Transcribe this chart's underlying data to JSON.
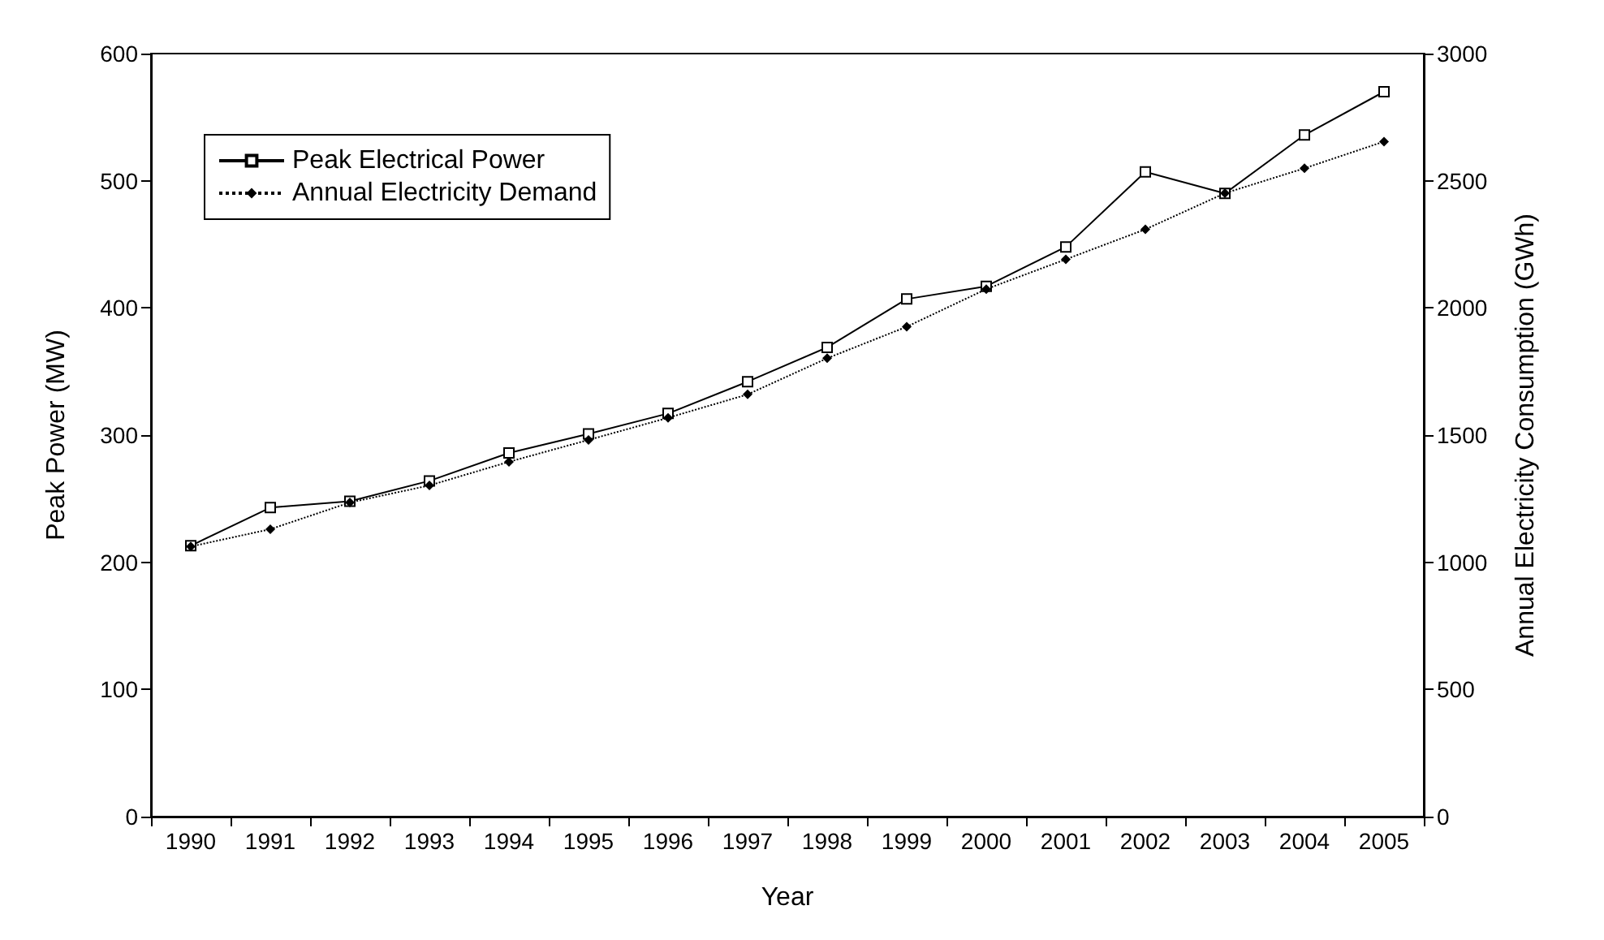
{
  "chart_data": {
    "type": "line",
    "xlabel": "Year",
    "ylabel": "Peak Power (MW)",
    "y2label": "Annual Electricity Consumption (GWh)",
    "categories": [
      "1990",
      "1991",
      "1992",
      "1993",
      "1994",
      "1995",
      "1996",
      "1997",
      "1998",
      "1999",
      "2000",
      "2001",
      "2002",
      "2003",
      "2004",
      "2005"
    ],
    "series": [
      {
        "name": "Peak Electrical Power",
        "color": "#000000",
        "marker": "square",
        "line_style": "solid",
        "values": [
          213,
          243,
          248,
          264,
          286,
          301,
          317,
          342,
          369,
          407,
          417,
          448,
          507,
          490,
          536,
          570
        ]
      },
      {
        "name": "Annual Electricity Demand",
        "color": "#000000",
        "marker": "diamond",
        "line_style": "dotted",
        "axis": "y2",
        "values": [
          1062,
          1130,
          1235,
          1302,
          1395,
          1481,
          1568,
          1660,
          1802,
          1926,
          2074,
          2191,
          2309,
          2451,
          2549,
          2654
        ]
      }
    ],
    "ylim": [
      0,
      600
    ],
    "yticks": [
      0,
      100,
      200,
      300,
      400,
      500,
      600
    ],
    "y2lim": [
      0,
      3000
    ],
    "y2ticks": [
      0,
      500,
      1000,
      1500,
      2000,
      2500,
      3000
    ],
    "grid": false,
    "legend": "top left"
  }
}
